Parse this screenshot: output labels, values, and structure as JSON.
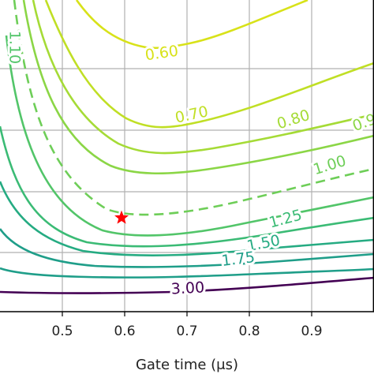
{
  "chart_data": {
    "type": "contour",
    "xlabel": "Gate time (μs)",
    "ylabel": "",
    "xlim": [
      0.4,
      1.0
    ],
    "x_ticks": [
      0.5,
      0.6,
      0.7,
      0.8,
      0.9
    ],
    "x_tick_labels": [
      "0.5",
      "0.6",
      "0.7",
      "0.8",
      "0.9"
    ],
    "grid": true,
    "colormap": "viridis",
    "levels": [
      {
        "label": "0.60",
        "color": "#d8e219",
        "dashed": false
      },
      {
        "label": "0.70",
        "color": "#c0df25",
        "dashed": false
      },
      {
        "label": "0.80",
        "color": "#a5db36",
        "dashed": false
      },
      {
        "label": "0.9",
        "color": "#8bd646",
        "dashed": false
      },
      {
        "label": "1.00",
        "color": "#6ece58",
        "dashed": true
      },
      {
        "label": "1.10",
        "color": "#52c569",
        "dashed": false
      },
      {
        "label": "1.25",
        "color": "#3bbb75",
        "dashed": false
      },
      {
        "label": "1.50",
        "color": "#25ab82",
        "dashed": false
      },
      {
        "label": "1.75",
        "color": "#1f9e89",
        "dashed": false
      },
      {
        "label": "3.00",
        "color": "#440154",
        "dashed": false
      }
    ],
    "marker": {
      "x": 0.595,
      "shape": "star",
      "color": "#ff0000"
    }
  }
}
